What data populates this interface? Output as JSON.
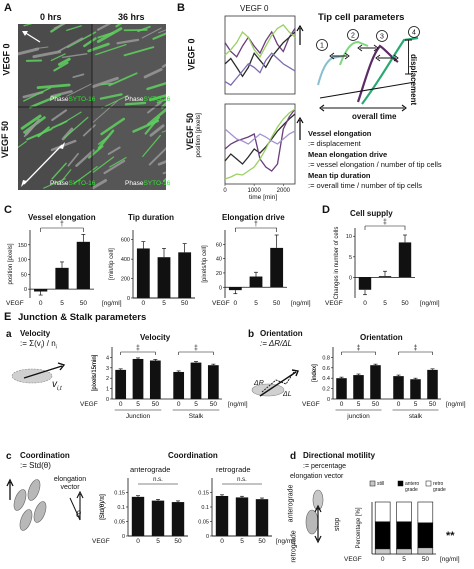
{
  "panels": {
    "A": {
      "letter": "A",
      "col_labels": [
        "0 hrs",
        "36 hrs"
      ],
      "row_labels": [
        "VEGF 0",
        "VEGF 50"
      ],
      "stain_phase": "Phase",
      "stain_syto": "SYTO-16"
    },
    "B": {
      "letter": "B",
      "top_title": "VEGF 0",
      "row_label_top": "VEGF 0",
      "row_label_bottom": "VEGF 50",
      "ylabel": "position [pixels]",
      "xlabel": "time [min]",
      "xticks": [
        "0",
        "1000",
        "2000"
      ],
      "schematic_title": "Tip cell parameters",
      "steps": [
        "1",
        "2",
        "3",
        "4"
      ],
      "displacement_label": "displacement",
      "overall_time_label": "overall time",
      "defs": [
        {
          "term": "Vessel elongation",
          "def": ":= displacement"
        },
        {
          "term": "Mean elongation drive",
          "def": ":= vessel elongation / number of tip cells"
        },
        {
          "term": "Mean tip duration",
          "def": ":= overall time / number of tip cells"
        }
      ]
    },
    "C": {
      "letter": "C",
      "xlabel": "VEGF",
      "unit": "[ng/ml]",
      "dagger": "†"
    },
    "D": {
      "letter": "D",
      "title": "Cell supply",
      "ylabel": "Changes in number of cells",
      "xlabel": "VEGF",
      "unit": "[ng/ml]",
      "mark": "‡"
    },
    "E": {
      "letter": "E",
      "title": "Junction & Stalk parameters",
      "a": {
        "letter": "a",
        "name": "Velocity",
        "formula": ":= Σ(v",
        "formula_sub": "i",
        "formula_end": ") / n",
        "formula_sub2": "i",
        "vlabel": "v",
        "vsub": "i,t"
      },
      "b": {
        "letter": "b",
        "name": "Orientation",
        "formula": ":= ΔR/ΔL",
        "dr": "ΔR",
        "dl": "ΔL"
      },
      "c": {
        "letter": "c",
        "name": "Coordination",
        "formula": ":= Std(θ)",
        "ev": "elongation vector",
        "theta": "θ"
      },
      "d": {
        "letter": "d",
        "name": "Directional motility",
        "formula": ":= percentage",
        "ev": "elongation vector",
        "antero": "anterograde",
        "retro": "retrograde",
        "stop": "stop",
        "stars": "**"
      }
    }
  },
  "chart_data": [
    {
      "id": "B-top",
      "type": "line",
      "title": "VEGF 0",
      "xlabel": "time [min]",
      "ylabel": "position [pixels]",
      "xlim": [
        0,
        2400
      ],
      "series": [
        {
          "color": "#6a3d7d",
          "x": [
            0,
            200,
            400,
            600,
            800,
            1000,
            1200,
            1400,
            1600,
            1800,
            2000,
            2200,
            2400
          ],
          "y": [
            52,
            47,
            44,
            50,
            55,
            50,
            46,
            53,
            58,
            51,
            47,
            55,
            60
          ]
        },
        {
          "color": "#2c2c2c",
          "x": [
            0,
            200,
            400,
            600,
            800,
            1000,
            1200,
            1400,
            1600,
            1800,
            2000,
            2200,
            2400
          ],
          "y": [
            40,
            43,
            38,
            33,
            38,
            46,
            42,
            38,
            44,
            48,
            52,
            55,
            58
          ]
        },
        {
          "color": "#9bd063",
          "x": [
            0,
            200,
            400,
            600,
            800,
            1000,
            1200,
            1400,
            1600,
            1800,
            2000,
            2200,
            2400
          ],
          "y": [
            45,
            48,
            52,
            58,
            55,
            48,
            44,
            50,
            56,
            60,
            62,
            58,
            55
          ]
        },
        {
          "color": "#7e6bb0",
          "x": [
            0,
            200,
            400,
            600,
            800,
            1000,
            1200,
            1400,
            1600,
            1800,
            2000,
            2200,
            2400
          ],
          "y": [
            30,
            28,
            32,
            36,
            40,
            38,
            35,
            42,
            46,
            43,
            40,
            38,
            36
          ]
        }
      ]
    },
    {
      "id": "B-bottom",
      "type": "line",
      "title": "",
      "xlabel": "time [min]",
      "ylabel": "position [pixels]",
      "xticks": [
        0,
        1000,
        2000
      ],
      "xlim": [
        0,
        2400
      ],
      "series": [
        {
          "color": "#2c2c2c",
          "x": [
            0,
            200,
            400,
            600,
            800,
            1000,
            1200,
            1400,
            1600,
            1800,
            2000,
            2200,
            2400
          ],
          "y": [
            28,
            35,
            30,
            25,
            32,
            40,
            36,
            42,
            50,
            58,
            64,
            70,
            75
          ]
        },
        {
          "color": "#6a3d7d",
          "x": [
            0,
            200,
            400,
            600,
            800,
            1000,
            1200,
            1400,
            1600,
            1800,
            2000,
            2200,
            2400
          ],
          "y": [
            40,
            45,
            48,
            50,
            52,
            55,
            30,
            22,
            18,
            25,
            60,
            72,
            80
          ]
        },
        {
          "color": "#9bd063",
          "x": [
            0,
            200,
            400,
            600,
            800,
            1000,
            1200,
            1400,
            1600,
            1800,
            2000,
            2200,
            2400
          ],
          "y": [
            10,
            12,
            15,
            14,
            18,
            22,
            30,
            40,
            52,
            62,
            70,
            76,
            80
          ]
        },
        {
          "color": "#a593cf",
          "x": [
            0,
            200,
            400,
            600,
            800,
            1000,
            1200,
            1400,
            1600,
            1800,
            2000,
            2200,
            2400
          ],
          "y": [
            60,
            55,
            50,
            48,
            45,
            50,
            55,
            52,
            48,
            45,
            50,
            55,
            58
          ]
        }
      ]
    },
    {
      "id": "C1",
      "type": "bar",
      "title": "Vessel elongation",
      "ylabel": "position [pixels]",
      "categories": [
        "0",
        "5",
        "50"
      ],
      "values": [
        -8,
        72,
        160
      ],
      "errors": [
        12,
        20,
        25
      ],
      "ylim": [
        -30,
        200
      ]
    },
    {
      "id": "C2",
      "type": "bar",
      "title": "Tip duration",
      "ylabel": "[min/tip cell]",
      "categories": [
        "0",
        "5",
        "50"
      ],
      "values": [
        510,
        420,
        470
      ],
      "errors": [
        70,
        90,
        90
      ],
      "ylim": [
        0,
        700
      ]
    },
    {
      "id": "C3",
      "type": "bar",
      "title": "Elongation drive",
      "ylabel": "[pixels/tip cell]",
      "categories": [
        "0",
        "5",
        "50"
      ],
      "values": [
        -4,
        15,
        55
      ],
      "errors": [
        5,
        6,
        18
      ],
      "ylim": [
        -15,
        80
      ]
    },
    {
      "id": "D",
      "type": "bar",
      "title": "Cell supply",
      "ylabel": "Changes in number of cells",
      "categories": [
        "0",
        "5",
        "50"
      ],
      "values": [
        -3,
        0.3,
        8.5
      ],
      "errors": [
        1.2,
        1.2,
        1.8
      ],
      "ylim": [
        -5,
        12
      ]
    },
    {
      "id": "Ea",
      "type": "bar",
      "title": "Velocity",
      "ylabel": "[pixels/15min]",
      "group_labels": [
        "Junction",
        "Stalk"
      ],
      "categories": [
        "0",
        "5",
        "50",
        "0",
        "5",
        "50"
      ],
      "values": [
        2.8,
        3.85,
        3.7,
        2.6,
        3.5,
        3.25
      ],
      "errors": [
        0.1,
        0.1,
        0.1,
        0.1,
        0.1,
        0.1
      ],
      "ylim": [
        0,
        5
      ],
      "marks": [
        "‡",
        "‡"
      ]
    },
    {
      "id": "Eb",
      "type": "bar",
      "title": "Orientation",
      "ylabel": "[index]",
      "group_labels": [
        "junction",
        "stalk"
      ],
      "categories": [
        "0",
        "5",
        "50",
        "0",
        "5",
        "50"
      ],
      "values": [
        0.4,
        0.46,
        0.65,
        0.44,
        0.38,
        0.56
      ],
      "errors": [
        0.02,
        0.02,
        0.02,
        0.02,
        0.02,
        0.02
      ],
      "ylim": [
        0,
        1.0
      ],
      "marks": [
        "‡",
        "‡"
      ]
    },
    {
      "id": "Ec1",
      "type": "bar",
      "title": "anterograde",
      "ylabel": "[Std(θ)/π]",
      "categories": [
        "0",
        "5",
        "50"
      ],
      "values": [
        0.135,
        0.122,
        0.117
      ],
      "errors": [
        0.004,
        0.004,
        0.004
      ],
      "ylim": [
        0,
        0.2
      ],
      "note": "n.s."
    },
    {
      "id": "Ec2",
      "type": "bar",
      "title": "retrograde",
      "categories": [
        "0",
        "5",
        "50"
      ],
      "values": [
        0.138,
        0.133,
        0.127
      ],
      "errors": [
        0.004,
        0.004,
        0.004
      ],
      "ylim": [
        0,
        0.2
      ],
      "note": "n.s."
    },
    {
      "id": "Ed",
      "type": "bar",
      "title": "",
      "ylabel": "Percentage [%]",
      "categories": [
        "0",
        "5",
        "50"
      ],
      "series": [
        {
          "name": "still",
          "color": "#c8c8c8",
          "values": [
            10,
            10,
            12
          ]
        },
        {
          "name": "antero grade",
          "color": "#000000",
          "values": [
            52,
            52,
            48
          ]
        },
        {
          "name": "retro grade",
          "color": "#ffffff",
          "values": [
            38,
            38,
            40
          ]
        }
      ],
      "ylim": [
        0,
        100
      ]
    }
  ],
  "common": {
    "vegf": "VEGF",
    "unit": "[ng/ml]"
  }
}
